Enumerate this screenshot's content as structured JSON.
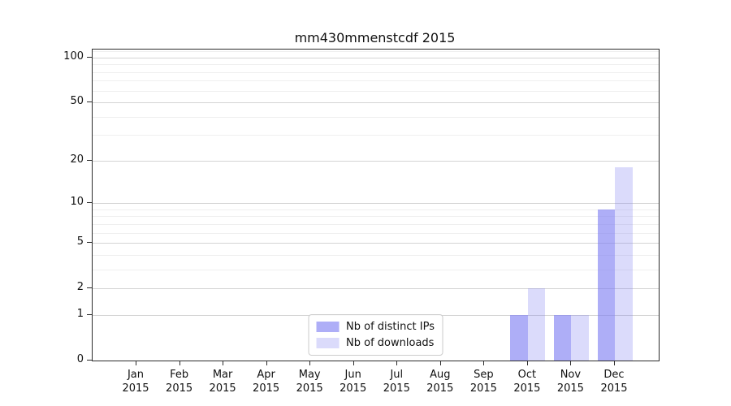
{
  "chart_data": {
    "type": "bar",
    "title": "mm430mmenstcdf 2015",
    "categories": [
      "Jan",
      "Feb",
      "Mar",
      "Apr",
      "May",
      "Jun",
      "Jul",
      "Aug",
      "Sep",
      "Oct",
      "Nov",
      "Dec"
    ],
    "x_year_label": "2015",
    "series": [
      {
        "name": "Nb of distinct IPs",
        "color": "rgba(124,124,242,0.62)",
        "values": [
          0,
          0,
          0,
          0,
          0,
          0,
          0,
          0,
          0,
          1,
          1,
          9
        ]
      },
      {
        "name": "Nb of downloads",
        "color": "rgba(124,124,242,0.28)",
        "values": [
          0,
          0,
          0,
          0,
          0,
          0,
          0,
          0,
          0,
          2,
          1,
          18
        ]
      }
    ],
    "y_axis": {
      "scale": "log1p",
      "ticks": [
        0,
        1,
        2,
        5,
        10,
        20,
        50,
        100
      ],
      "minor_ticks": [
        3,
        4,
        6,
        7,
        8,
        9,
        30,
        40,
        60,
        70,
        80,
        90,
        110
      ],
      "ylim": [
        0,
        113
      ]
    },
    "grid": true,
    "legend_position": "lower center",
    "colors": {
      "grid_major": "#d4d4d4",
      "grid_minor": "#efefef",
      "spine": "#2b2b2b",
      "text": "#111111"
    }
  }
}
